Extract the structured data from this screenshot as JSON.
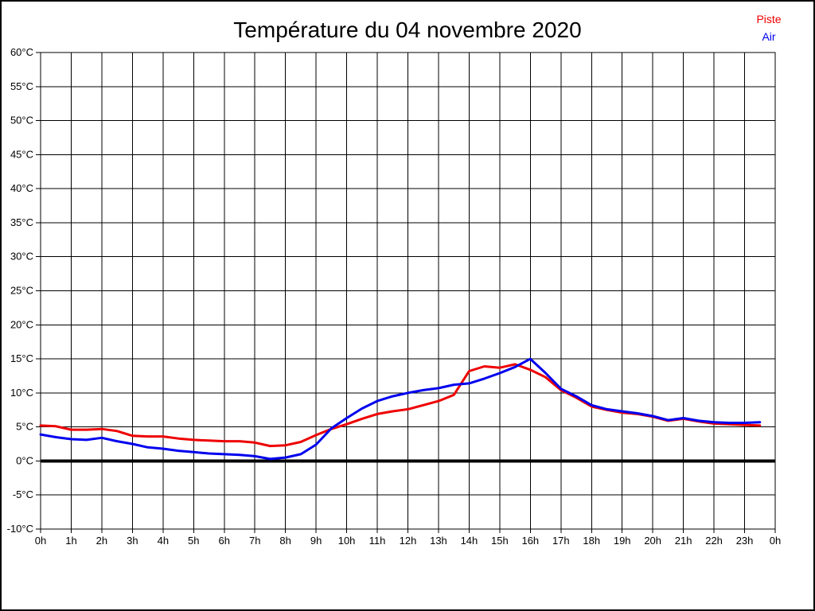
{
  "title": "Température du 04 novembre 2020",
  "legend": {
    "piste_label": "Piste",
    "air_label": "Air"
  },
  "chart_data": {
    "type": "line",
    "title": "Température du 04 novembre 2020",
    "xlabel": "",
    "ylabel": "",
    "xlim": [
      0,
      24
    ],
    "ylim": [
      -10,
      60
    ],
    "x_tick_step": 1,
    "y_tick_step": 5,
    "grid": true,
    "zero_line": true,
    "zero_line_color": "#000000",
    "grid_color": "#000000",
    "legend_position": "top-right",
    "x_tick_labels": [
      "0h",
      "1h",
      "2h",
      "3h",
      "4h",
      "5h",
      "6h",
      "7h",
      "8h",
      "9h",
      "10h",
      "11h",
      "12h",
      "13h",
      "14h",
      "15h",
      "16h",
      "17h",
      "18h",
      "19h",
      "20h",
      "21h",
      "22h",
      "23h",
      "0h"
    ],
    "y_tick_labels": [
      "-10°C",
      "-5°C",
      "0°C",
      "5°C",
      "10°C",
      "15°C",
      "20°C",
      "25°C",
      "30°C",
      "35°C",
      "40°C",
      "45°C",
      "50°C",
      "55°C",
      "60°C"
    ],
    "x": [
      0,
      0.5,
      1,
      1.5,
      2,
      2.5,
      3,
      3.5,
      4,
      4.5,
      5,
      5.5,
      6,
      6.5,
      7,
      7.5,
      8,
      8.5,
      9,
      9.5,
      10,
      10.5,
      11,
      11.5,
      12,
      12.5,
      13,
      13.5,
      14,
      14.5,
      15,
      15.5,
      16,
      16.5,
      17,
      17.5,
      18,
      18.5,
      19,
      19.5,
      20,
      20.5,
      21,
      21.5,
      22,
      22.5,
      23,
      23.5
    ],
    "series": [
      {
        "name": "Piste",
        "color": "#ee0000",
        "values": [
          5.2,
          5.1,
          4.6,
          4.6,
          4.7,
          4.4,
          3.7,
          3.6,
          3.6,
          3.3,
          3.1,
          3.0,
          2.9,
          2.9,
          2.7,
          2.2,
          2.3,
          2.8,
          3.8,
          4.7,
          5.4,
          6.2,
          6.9,
          7.3,
          7.6,
          8.2,
          8.8,
          9.7,
          13.2,
          13.9,
          13.7,
          14.2,
          13.4,
          12.3,
          10.4,
          9.3,
          8.0,
          7.5,
          7.1,
          6.9,
          6.5,
          5.9,
          6.2,
          5.8,
          5.5,
          5.4,
          5.3,
          5.2
        ]
      },
      {
        "name": "Air",
        "color": "#0000ee",
        "values": [
          3.9,
          3.5,
          3.2,
          3.1,
          3.4,
          2.9,
          2.5,
          2.0,
          1.8,
          1.5,
          1.3,
          1.1,
          1.0,
          0.9,
          0.7,
          0.3,
          0.5,
          1.0,
          2.4,
          4.8,
          6.3,
          7.7,
          8.8,
          9.5,
          10.0,
          10.4,
          10.7,
          11.2,
          11.4,
          12.1,
          12.9,
          13.8,
          15.0,
          12.9,
          10.6,
          9.5,
          8.2,
          7.6,
          7.3,
          7.0,
          6.6,
          6.0,
          6.3,
          5.9,
          5.7,
          5.6,
          5.6,
          5.7
        ]
      }
    ]
  }
}
